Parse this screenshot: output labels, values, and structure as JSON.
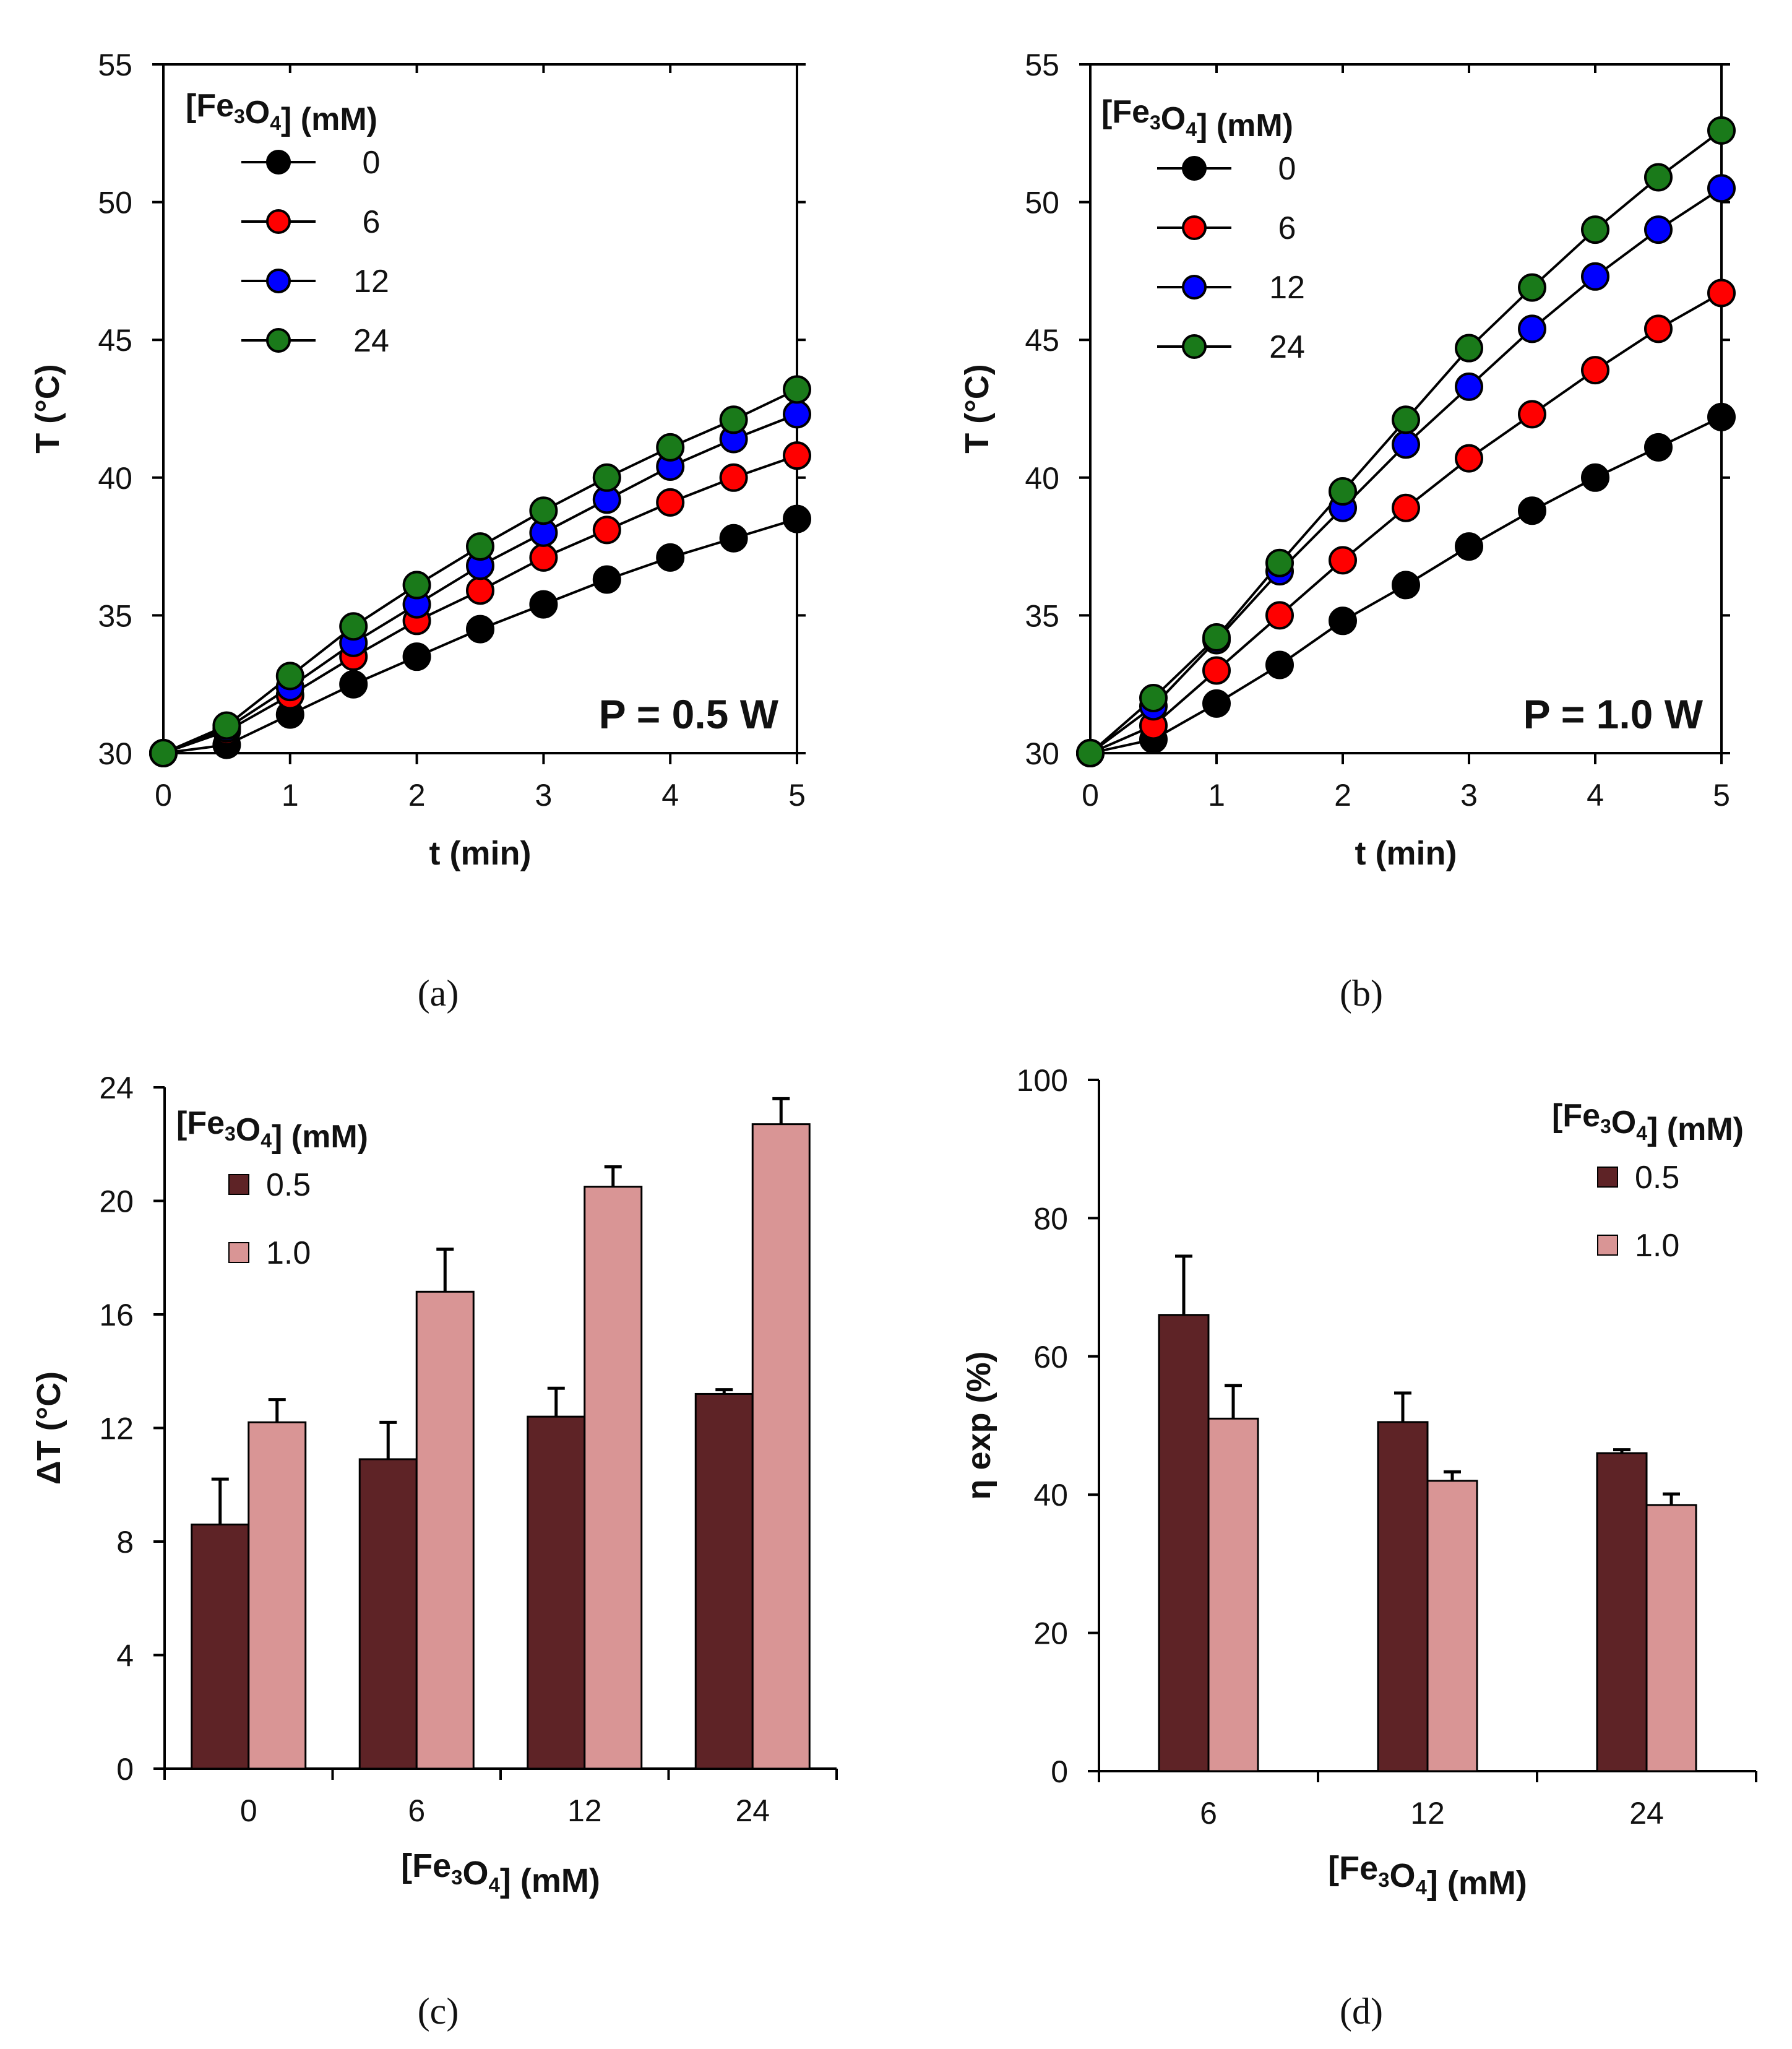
{
  "figure": {
    "panels": [
      {
        "caption": "(a)",
        "annotation": "P = 0.5 W",
        "legend_title": "[Fe3O4] (mM)"
      },
      {
        "caption": "(b)",
        "annotation": "P = 1.0 W",
        "legend_title": "[Fe3O4] (mM)"
      },
      {
        "caption": "(c)",
        "legend_title": "[Fe3O4] (mM)"
      },
      {
        "caption": "(d)",
        "legend_title": "[Fe3O4] (mM)"
      }
    ]
  },
  "colors": {
    "black": "#000000",
    "red": "#ff0000",
    "blue": "#0000ff",
    "green": "#1a7a1a",
    "dark_bar": "#5e2326",
    "light_bar": "#d99595"
  },
  "chart_data": [
    {
      "id": "a",
      "type": "line",
      "title": "",
      "xlabel": "t (min)",
      "ylabel": "T (°C)",
      "xlim": [
        0,
        5
      ],
      "ylim": [
        30,
        55
      ],
      "xticks": [
        0,
        1,
        2,
        3,
        4,
        5
      ],
      "yticks": [
        30,
        35,
        40,
        45,
        50,
        55
      ],
      "legend_title": "[Fe3O4] (mM)",
      "annotation": "P = 0.5 W",
      "x": [
        0,
        0.5,
        1,
        1.5,
        2,
        2.5,
        3,
        3.5,
        4,
        4.5,
        5
      ],
      "series": [
        {
          "name": "0",
          "color": "#000000",
          "values": [
            30,
            30.3,
            31.4,
            32.5,
            33.5,
            34.5,
            35.4,
            36.3,
            37.1,
            37.8,
            38.5
          ]
        },
        {
          "name": "6",
          "color": "#ff0000",
          "values": [
            30,
            30.8,
            32.1,
            33.5,
            34.8,
            35.9,
            37.1,
            38.1,
            39.1,
            40.0,
            40.8
          ]
        },
        {
          "name": "12",
          "color": "#0000ff",
          "values": [
            30,
            30.9,
            32.4,
            34.0,
            35.4,
            36.8,
            38.0,
            39.2,
            40.4,
            41.4,
            42.3
          ]
        },
        {
          "name": "24",
          "color": "#1a7a1a",
          "values": [
            30,
            31.0,
            32.8,
            34.6,
            36.1,
            37.5,
            38.8,
            40.0,
            41.1,
            42.1,
            43.2
          ]
        }
      ]
    },
    {
      "id": "b",
      "type": "line",
      "title": "",
      "xlabel": "t (min)",
      "ylabel": "T (°C)",
      "xlim": [
        0,
        5
      ],
      "ylim": [
        30,
        55
      ],
      "xticks": [
        0,
        1,
        2,
        3,
        4,
        5
      ],
      "yticks": [
        30,
        35,
        40,
        45,
        50,
        55
      ],
      "legend_title": "[Fe3O4] (mM)",
      "annotation": "P = 1.0 W",
      "x": [
        0,
        0.5,
        1,
        1.5,
        2,
        2.5,
        3,
        3.5,
        4,
        4.5,
        5
      ],
      "series": [
        {
          "name": "0",
          "color": "#000000",
          "values": [
            30,
            30.5,
            31.8,
            33.2,
            34.8,
            36.1,
            37.5,
            38.8,
            40.0,
            41.1,
            42.2
          ]
        },
        {
          "name": "6",
          "color": "#ff0000",
          "values": [
            30,
            31.0,
            33.0,
            35.0,
            37.0,
            38.9,
            40.7,
            42.3,
            43.9,
            45.4,
            46.7
          ]
        },
        {
          "name": "12",
          "color": "#0000ff",
          "values": [
            30,
            31.7,
            34.1,
            36.6,
            38.9,
            41.2,
            43.3,
            45.4,
            47.3,
            49.0,
            50.5
          ]
        },
        {
          "name": "24",
          "color": "#1a7a1a",
          "values": [
            30,
            32.0,
            34.2,
            36.9,
            39.5,
            42.1,
            44.7,
            46.9,
            49.0,
            50.9,
            52.6
          ]
        }
      ]
    },
    {
      "id": "c",
      "type": "bar",
      "title": "",
      "xlabel": "[Fe3O4] (mM)",
      "ylabel": "ΔT (°C)",
      "ylim": [
        0,
        24
      ],
      "yticks": [
        0,
        4,
        8,
        12,
        16,
        20,
        24
      ],
      "categories": [
        "0",
        "6",
        "12",
        "24"
      ],
      "legend_title": "[Fe3O4] (mM)",
      "series": [
        {
          "name": "0.5",
          "color": "#5e2326",
          "values": [
            8.6,
            10.9,
            12.4,
            13.2
          ],
          "errors": [
            1.6,
            1.3,
            1.0,
            0.15
          ]
        },
        {
          "name": "1.0",
          "color": "#d99595",
          "values": [
            12.2,
            16.8,
            20.5,
            22.7
          ],
          "errors": [
            0.8,
            1.5,
            0.7,
            0.9
          ]
        }
      ]
    },
    {
      "id": "d",
      "type": "bar",
      "title": "",
      "xlabel": "[Fe3O4] (mM)",
      "ylabel": "η exp (%)",
      "ylim": [
        0,
        100
      ],
      "yticks": [
        0,
        20,
        40,
        60,
        80,
        100
      ],
      "categories": [
        "6",
        "12",
        "24"
      ],
      "legend_title": "[Fe3O4] (mM)",
      "series": [
        {
          "name": "0.5",
          "color": "#5e2326",
          "values": [
            66,
            50.5,
            46
          ],
          "errors": [
            8.5,
            4.2,
            0.5
          ]
        },
        {
          "name": "1.0",
          "color": "#d99595",
          "values": [
            51,
            42,
            38.5
          ],
          "errors": [
            4.8,
            1.3,
            1.6
          ]
        }
      ]
    }
  ]
}
